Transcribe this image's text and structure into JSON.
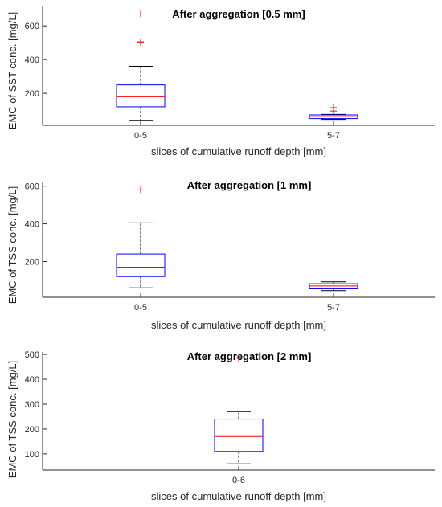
{
  "chart_data": [
    {
      "type": "box",
      "title": "After aggregation [0.5 mm]",
      "xlabel": "slices of cumulative runoff depth [mm]",
      "ylabel": "EMC of SST conc. [mg/L]",
      "ylim": [
        10,
        720
      ],
      "yticks": [
        200,
        400,
        600
      ],
      "categories": [
        "0-5",
        "5-7"
      ],
      "boxes": [
        {
          "label": "0-5",
          "whisker_low": 40,
          "q1": 120,
          "median": 180,
          "q3": 250,
          "whisker_high": 360,
          "outliers": [
            500,
            505,
            670
          ]
        },
        {
          "label": "5-7",
          "whisker_low": 45,
          "q1": 50,
          "median": 62,
          "q3": 72,
          "whisker_high": 75,
          "outliers": [
            95,
            115
          ]
        }
      ]
    },
    {
      "type": "box",
      "title": "After aggregation [1 mm]",
      "xlabel": "slices of cumulative runoff depth [mm]",
      "ylabel": "EMC of TSS conc. [mg/L]",
      "ylim": [
        10,
        620
      ],
      "yticks": [
        200,
        400,
        600
      ],
      "categories": [
        "0-5",
        "5-7"
      ],
      "boxes": [
        {
          "label": "0-5",
          "whisker_low": 60,
          "q1": 120,
          "median": 170,
          "q3": 240,
          "whisker_high": 405,
          "outliers": [
            580
          ]
        },
        {
          "label": "5-7",
          "whisker_low": 45,
          "q1": 55,
          "median": 70,
          "q3": 82,
          "whisker_high": 92,
          "outliers": []
        }
      ]
    },
    {
      "type": "box",
      "title": "After aggregation [2 mm]",
      "xlabel": "slices of cumulative runoff depth [mm]",
      "ylabel": "EMC of TSS conc. [mg/L]",
      "ylim": [
        35,
        510
      ],
      "yticks": [
        100,
        200,
        300,
        400,
        500
      ],
      "categories": [
        "0-6"
      ],
      "boxes": [
        {
          "label": "0-6",
          "whisker_low": 60,
          "q1": 110,
          "median": 170,
          "q3": 240,
          "whisker_high": 270,
          "outliers": [
            485
          ]
        }
      ]
    }
  ],
  "colors": {
    "box": "#0000ff",
    "median": "#ff0000",
    "whisker": "#000000",
    "outlier": "#ff0000",
    "axis": "#262626"
  }
}
